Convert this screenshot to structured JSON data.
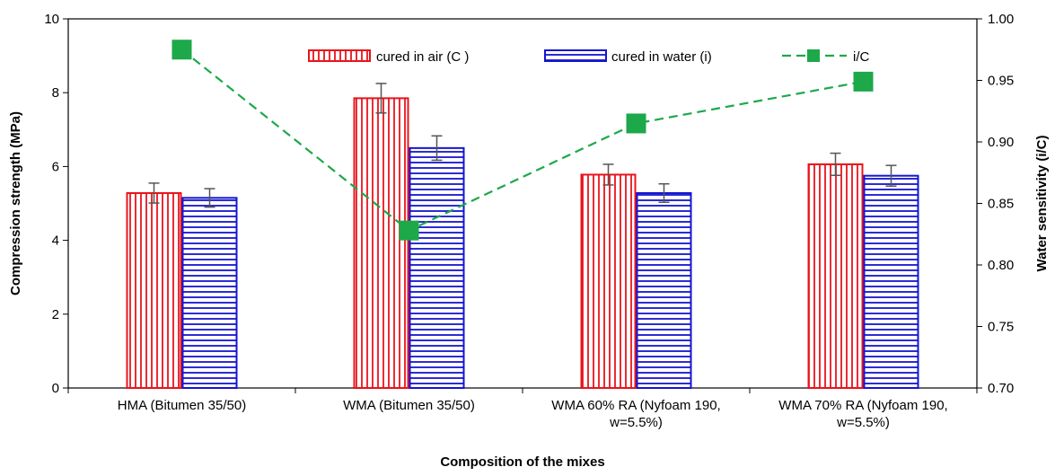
{
  "chart_data": {
    "type": "bar",
    "xlabel": "Composition of the mixes",
    "ylabel": "Compression strength (MPa)",
    "y2label": "Water sensitivity (i/C)",
    "ylim": [
      0,
      10
    ],
    "y2lim": [
      0.7,
      1.0
    ],
    "yticks": [
      "0",
      "2",
      "4",
      "6",
      "8",
      "10"
    ],
    "y2ticks": [
      "0.70",
      "0.75",
      "0.80",
      "0.85",
      "0.90",
      "0.95",
      "1.00"
    ],
    "categories": [
      [
        "HMA (Bitumen 35/50)"
      ],
      [
        "WMA (Bitumen 35/50)"
      ],
      [
        "WMA 60% RA (Nyfoam 190,",
        "w=5.5%)"
      ],
      [
        "WMA 70% RA (Nyfoam 190,",
        "w=5.5%)"
      ]
    ],
    "series": [
      {
        "name": "cured in air (C )",
        "kind": "bar",
        "pattern": "vertical-stripes",
        "color": "#e8141c",
        "values": [
          5.28,
          7.85,
          5.78,
          6.06
        ],
        "errors": [
          0.27,
          0.4,
          0.28,
          0.3
        ]
      },
      {
        "name": "cured in water (i)",
        "kind": "bar",
        "pattern": "horizontal-stripes",
        "color": "#1414d2",
        "values": [
          5.15,
          6.5,
          5.28,
          5.75
        ],
        "errors": [
          0.25,
          0.33,
          0.25,
          0.28
        ]
      },
      {
        "name": "i/C",
        "kind": "line",
        "axis": "right",
        "line_style": "dashed",
        "marker": "square",
        "color": "#1da84a",
        "values": [
          0.975,
          0.828,
          0.915,
          0.949
        ]
      }
    ],
    "legend": "top",
    "grid": false
  }
}
